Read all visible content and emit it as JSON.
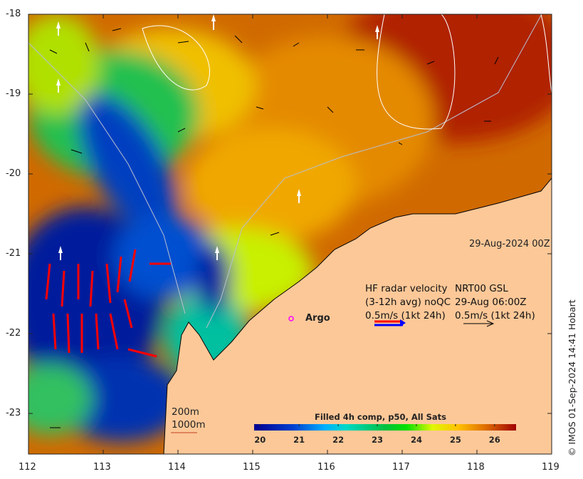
{
  "map": {
    "x_ticks": [
      "112",
      "113",
      "114",
      "115",
      "116",
      "117",
      "118",
      "119"
    ],
    "y_ticks": [
      "-18",
      "-19",
      "-20",
      "-21",
      "-22",
      "-23"
    ],
    "date_label": "29-Aug-2024 00Z",
    "argo_label": "Argo",
    "depth_labels": [
      "200m",
      "1000m"
    ],
    "copyright": "© IMOS 01-Sep-2024 14:41 Hobart"
  },
  "legend": {
    "hf_col": [
      "HF radar velocity",
      "(3-12h avg) noQC",
      "0.5m/s (1kt 24h)"
    ],
    "gsl_col": [
      "NRT00 GSL",
      "29-Aug 06:00Z",
      "0.5m/s (1kt 24h)"
    ]
  },
  "colorbar": {
    "title": "Filled 4h comp, p50, All Sats",
    "ticks": [
      "20",
      "21",
      "22",
      "23",
      "24",
      "25",
      "26"
    ],
    "range": [
      19.85,
      26.55
    ]
  },
  "colors": {
    "land": "#fdc898",
    "hf_red": "#ff0000",
    "hf_blue": "#0000ff",
    "argo": "#ff00ff"
  }
}
